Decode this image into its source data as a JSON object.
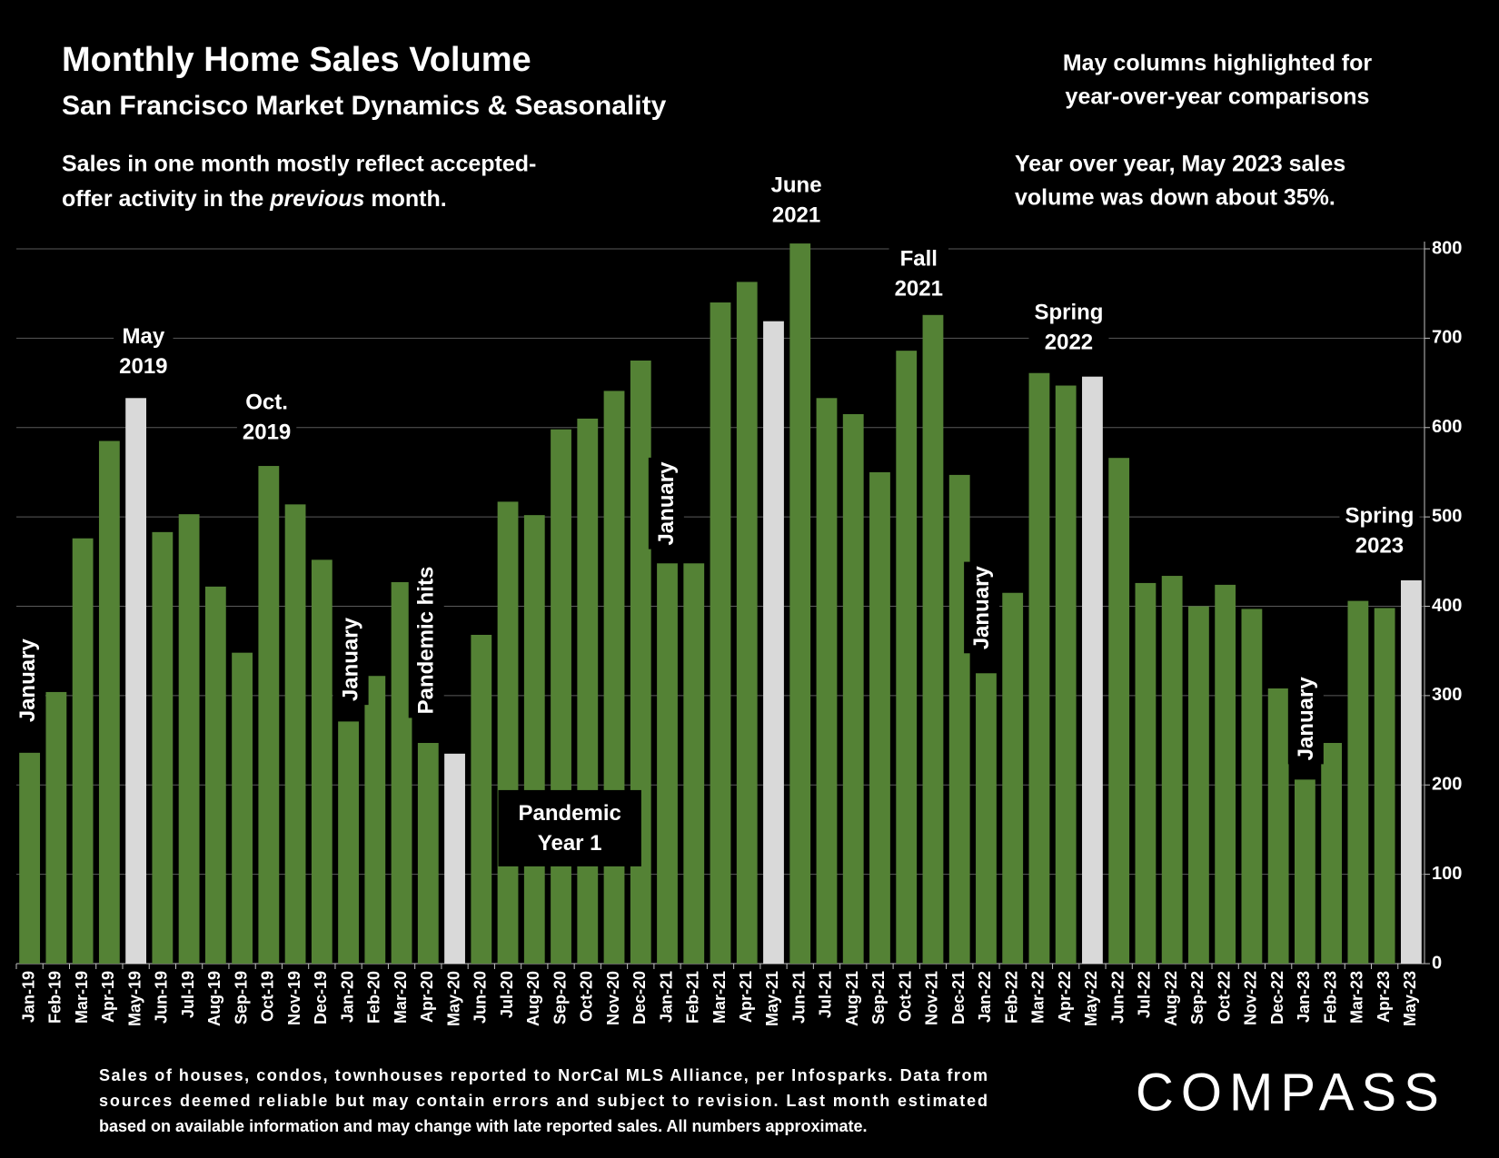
{
  "chart_data": {
    "type": "bar",
    "title": "Monthly Home Sales Volume",
    "subtitle": "San Francisco Market Dynamics & Seasonality",
    "note_left": [
      "Sales in one month mostly reflect accepted-",
      "offer activity in the ",
      "previous",
      " month."
    ],
    "note_right_top": [
      "May columns highlighted for",
      "year-over-year comparisons"
    ],
    "note_right": [
      "Year over year, May 2023 sales",
      "volume was down about 35%."
    ],
    "footer": [
      "Sales of houses, condos, townhouses reported to NorCal MLS Alliance, per Infosparks. Data from",
      "sources deemed reliable but may contain errors and subject to revision. Last month estimated",
      "based on available information and may change with late reported sales. All numbers approximate."
    ],
    "brand": "COMPASS",
    "categories": [
      "Jan-19",
      "Feb-19",
      "Mar-19",
      "Apr-19",
      "May-19",
      "Jun-19",
      "Jul-19",
      "Aug-19",
      "Sep-19",
      "Oct-19",
      "Nov-19",
      "Dec-19",
      "Jan-20",
      "Feb-20",
      "Mar-20",
      "Apr-20",
      "May-20",
      "Jun-20",
      "Jul-20",
      "Aug-20",
      "Sep-20",
      "Oct-20",
      "Nov-20",
      "Dec-20",
      "Jan-21",
      "Feb-21",
      "Mar-21",
      "Apr-21",
      "May-21",
      "Jun-21",
      "Jul-21",
      "Aug-21",
      "Sep-21",
      "Oct-21",
      "Nov-21",
      "Dec-21",
      "Jan-22",
      "Feb-22",
      "Mar-22",
      "Apr-22",
      "May-22",
      "Jun-22",
      "Jul-22",
      "Aug-22",
      "Sep-22",
      "Oct-22",
      "Nov-22",
      "Dec-22",
      "Jan-23",
      "Feb-23",
      "Mar-23",
      "Apr-23",
      "May-23"
    ],
    "values": [
      236,
      304,
      476,
      585,
      633,
      483,
      503,
      422,
      348,
      557,
      514,
      452,
      271,
      322,
      427,
      247,
      235,
      368,
      517,
      502,
      598,
      610,
      641,
      675,
      448,
      448,
      740,
      763,
      719,
      806,
      633,
      615,
      550,
      686,
      726,
      547,
      325,
      415,
      661,
      647,
      657,
      566,
      426,
      434,
      400,
      424,
      397,
      308,
      206,
      247,
      406,
      398,
      429
    ],
    "colors": [
      "#548235",
      "#548235",
      "#548235",
      "#548235",
      "#d9d9d9",
      "#548235",
      "#548235",
      "#548235",
      "#548235",
      "#548235",
      "#548235",
      "#548235",
      "#548235",
      "#548235",
      "#548235",
      "#548235",
      "#d9d9d9",
      "#548235",
      "#548235",
      "#548235",
      "#548235",
      "#548235",
      "#548235",
      "#548235",
      "#548235",
      "#548235",
      "#548235",
      "#548235",
      "#d9d9d9",
      "#548235",
      "#548235",
      "#548235",
      "#548235",
      "#548235",
      "#548235",
      "#548235",
      "#548235",
      "#548235",
      "#548235",
      "#548235",
      "#d9d9d9",
      "#548235",
      "#548235",
      "#548235",
      "#548235",
      "#548235",
      "#548235",
      "#548235",
      "#548235",
      "#548235",
      "#548235",
      "#548235",
      "#d9d9d9"
    ],
    "ylim": [
      0,
      800
    ],
    "yticks": [
      0,
      100,
      200,
      300,
      400,
      500,
      600,
      700,
      800
    ],
    "grid": true,
    "annotations": [
      {
        "lines": [
          "January"
        ]
      },
      {
        "lines": [
          "May",
          "2019"
        ]
      },
      {
        "lines": [
          "Oct.",
          "2019"
        ]
      },
      {
        "lines": [
          "January"
        ]
      },
      {
        "lines": [
          "Pandemic hits"
        ]
      },
      {
        "lines": [
          "Pandemic",
          "Year 1"
        ]
      },
      {
        "lines": [
          "January"
        ]
      },
      {
        "lines": [
          "June",
          "2021"
        ]
      },
      {
        "lines": [
          "Fall",
          "2021"
        ]
      },
      {
        "lines": [
          "Spring",
          "2022"
        ]
      },
      {
        "lines": [
          "January"
        ]
      },
      {
        "lines": [
          "January"
        ]
      },
      {
        "lines": [
          "Spring",
          "2023"
        ]
      }
    ]
  }
}
